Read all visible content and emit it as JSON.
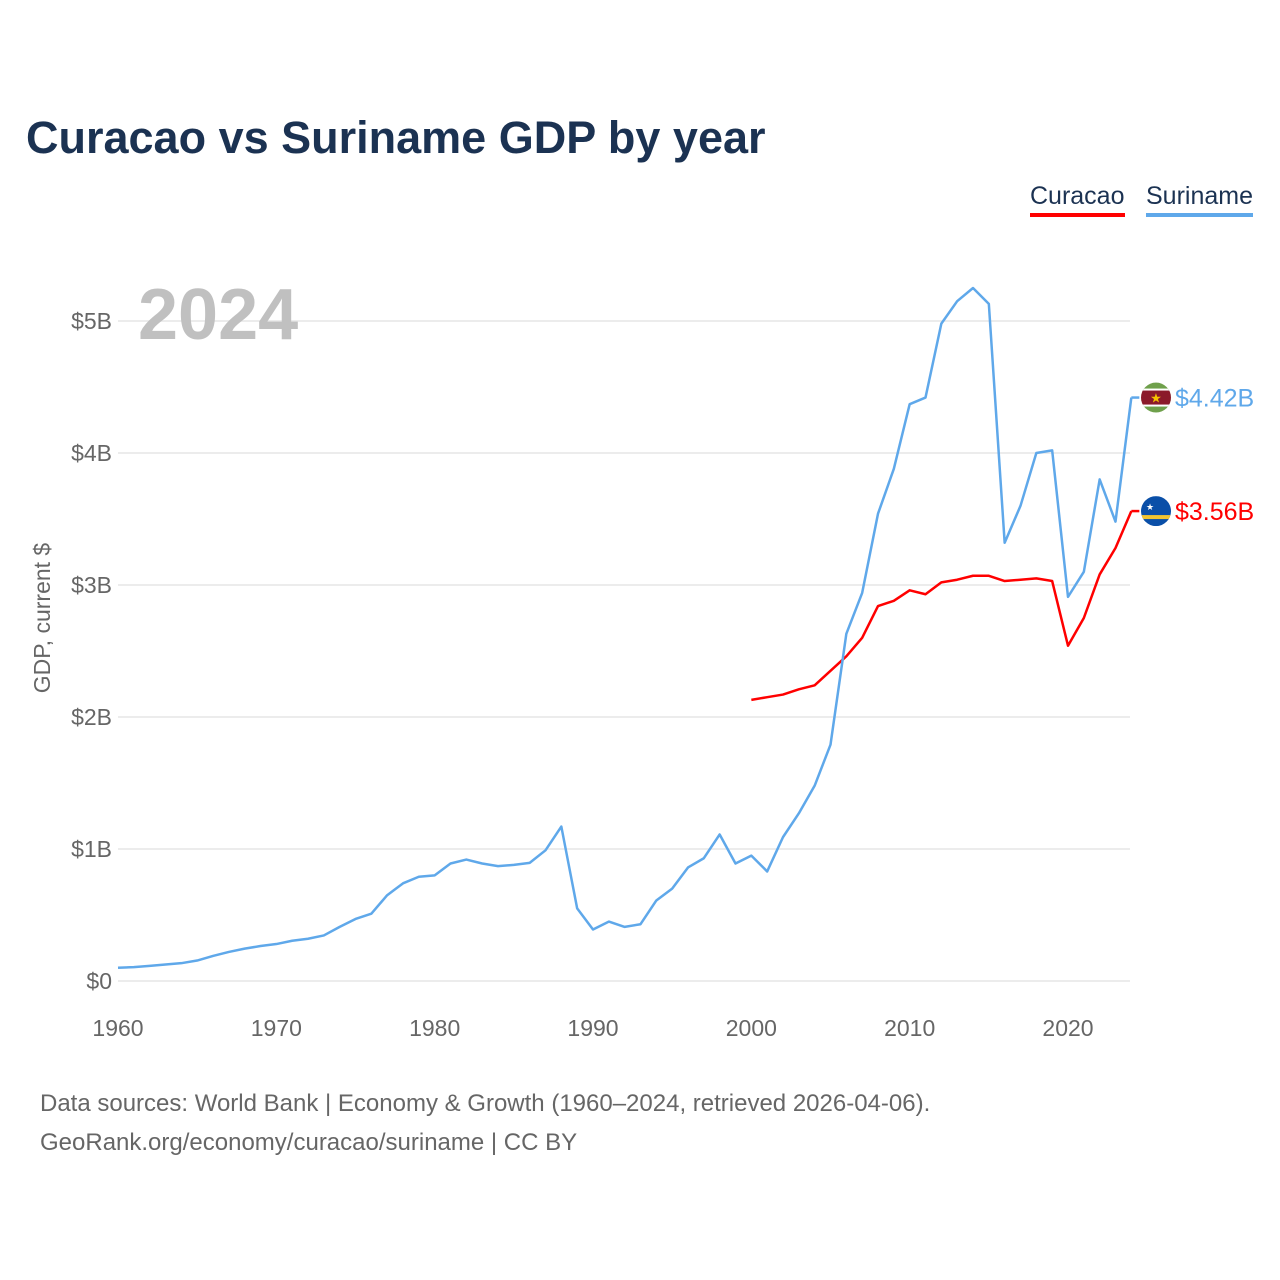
{
  "chart_data": {
    "type": "line",
    "title": "Curacao vs Suriname GDP by year",
    "xlabel": "",
    "ylabel": "GDP, current $",
    "year_label": "2024",
    "xlim": [
      1960,
      2024
    ],
    "ylim": [
      0,
      5.3
    ],
    "x_ticks": [
      1960,
      1970,
      1980,
      1990,
      2000,
      2010,
      2020
    ],
    "x_tick_labels": [
      "1960",
      "1970",
      "1980",
      "1990",
      "2000",
      "2010",
      "2020"
    ],
    "y_ticks": [
      0,
      1,
      2,
      3,
      4,
      5
    ],
    "y_tick_labels": [
      "$0",
      "$1B",
      "$2B",
      "$3B",
      "$4B",
      "$5B"
    ],
    "grid": true,
    "legend_position": "top-right",
    "series": [
      {
        "name": "Curacao",
        "color": "#ff0000",
        "end_label": "$3.56B",
        "flag": "curacao-flag",
        "x": [
          2000,
          2001,
          2002,
          2003,
          2004,
          2005,
          2006,
          2007,
          2008,
          2009,
          2010,
          2011,
          2012,
          2013,
          2014,
          2015,
          2016,
          2017,
          2018,
          2019,
          2020,
          2021,
          2022,
          2023,
          2024
        ],
        "values": [
          2.13,
          2.15,
          2.17,
          2.21,
          2.24,
          2.35,
          2.46,
          2.6,
          2.84,
          2.88,
          2.96,
          2.93,
          3.02,
          3.04,
          3.07,
          3.07,
          3.03,
          3.04,
          3.05,
          3.03,
          2.54,
          2.75,
          3.08,
          3.28,
          3.56
        ]
      },
      {
        "name": "Suriname",
        "color": "#5fa8ea",
        "end_label": "$4.42B",
        "flag": "suriname-flag",
        "x": [
          1960,
          1961,
          1962,
          1963,
          1964,
          1965,
          1966,
          1967,
          1968,
          1969,
          1970,
          1971,
          1972,
          1973,
          1974,
          1975,
          1976,
          1977,
          1978,
          1979,
          1980,
          1981,
          1982,
          1983,
          1984,
          1985,
          1986,
          1987,
          1988,
          1989,
          1990,
          1991,
          1992,
          1993,
          1994,
          1995,
          1996,
          1997,
          1998,
          1999,
          2000,
          2001,
          2002,
          2003,
          2004,
          2005,
          2006,
          2007,
          2008,
          2009,
          2010,
          2011,
          2012,
          2013,
          2014,
          2015,
          2016,
          2017,
          2018,
          2019,
          2020,
          2021,
          2022,
          2023,
          2024
        ],
        "values": [
          0.1,
          0.105,
          0.115,
          0.125,
          0.135,
          0.155,
          0.19,
          0.22,
          0.245,
          0.265,
          0.28,
          0.305,
          0.32,
          0.345,
          0.41,
          0.47,
          0.51,
          0.65,
          0.74,
          0.79,
          0.8,
          0.89,
          0.92,
          0.89,
          0.87,
          0.88,
          0.895,
          0.99,
          1.17,
          0.55,
          0.39,
          0.45,
          0.41,
          0.43,
          0.61,
          0.7,
          0.86,
          0.93,
          1.11,
          0.89,
          0.95,
          0.83,
          1.09,
          1.27,
          1.48,
          1.79,
          2.63,
          2.94,
          3.54,
          3.88,
          4.37,
          4.42,
          4.98,
          5.15,
          5.25,
          5.13,
          3.32,
          3.6,
          4.0,
          4.02,
          2.91,
          3.1,
          3.8,
          3.48,
          4.42
        ]
      }
    ]
  },
  "source": {
    "line1": "Data sources: World Bank | Economy & Growth (1960–2024, retrieved 2026-04-06).",
    "line2": "GeoRank.org/economy/curacao/suriname | CC BY"
  }
}
